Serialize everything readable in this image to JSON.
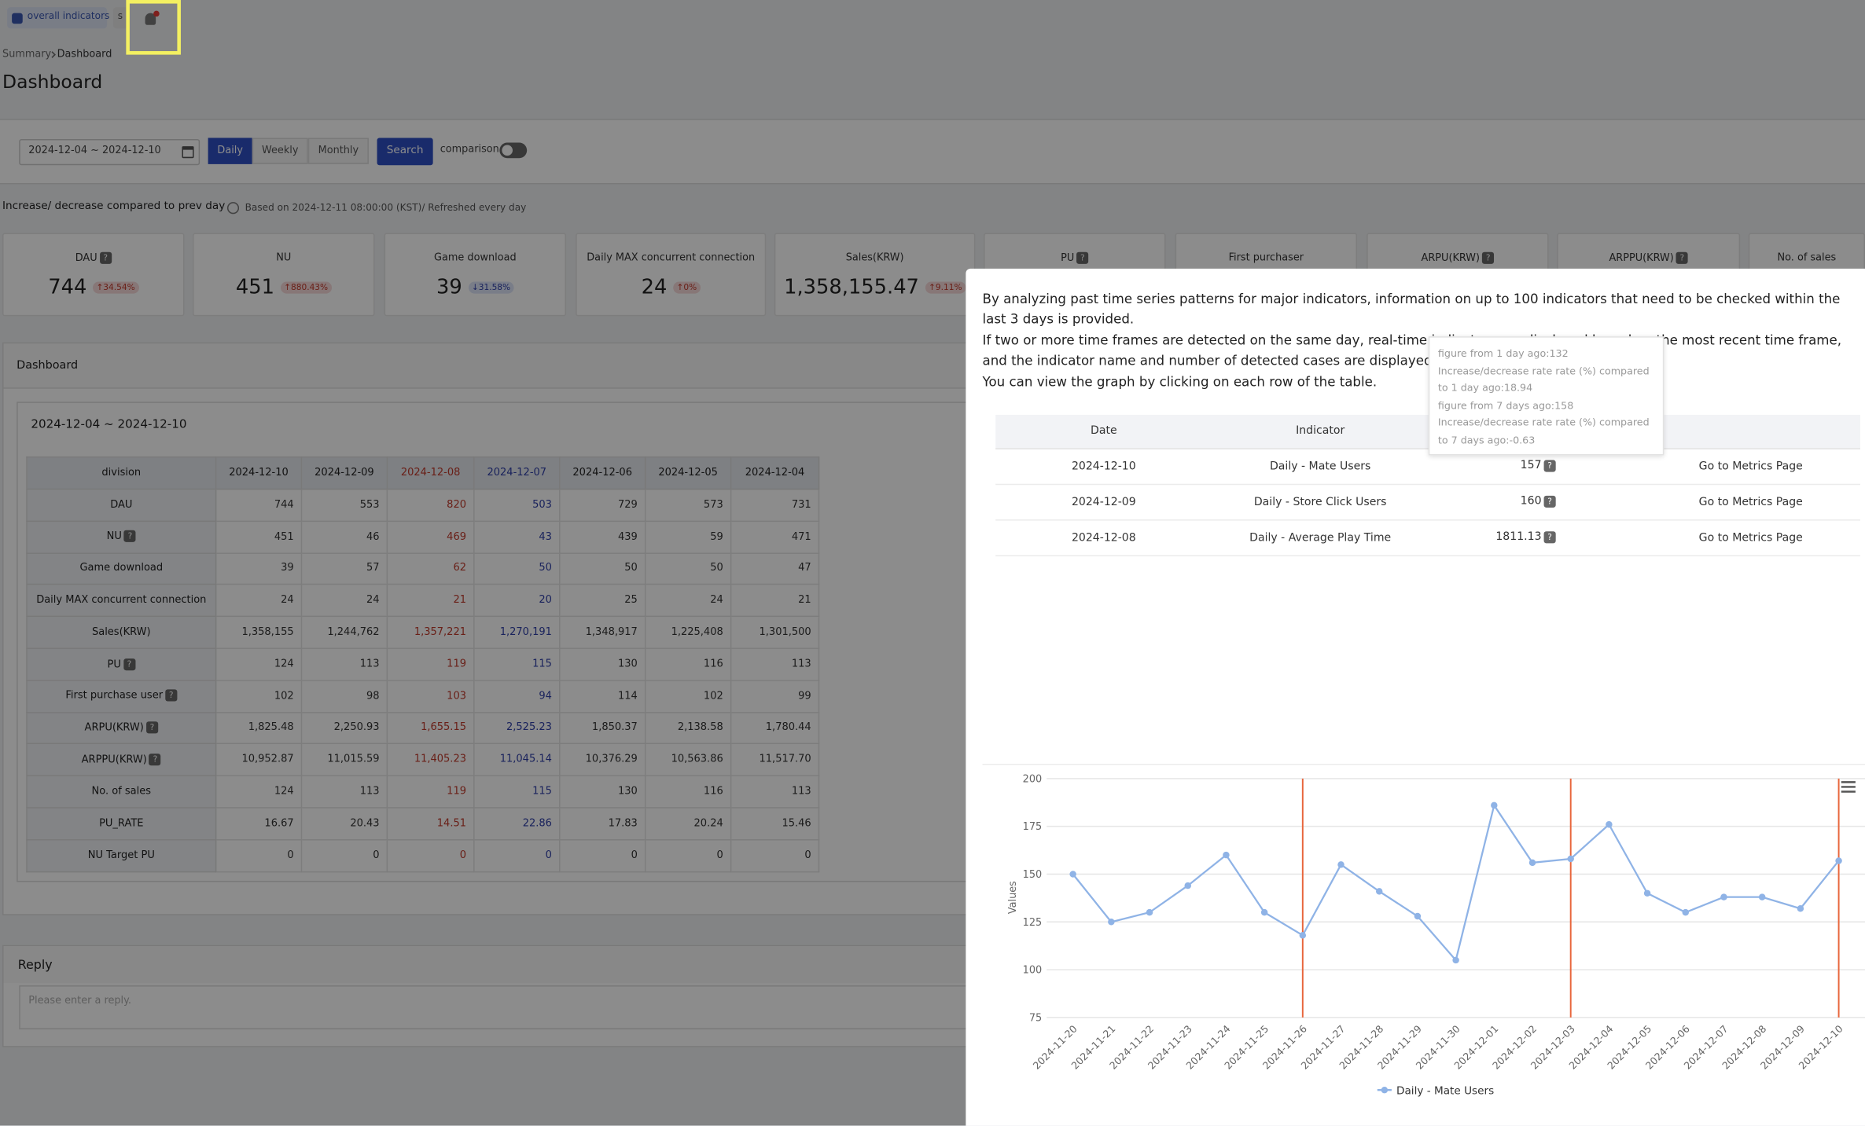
{
  "tabs": [
    "overall indicators",
    "s"
  ],
  "breadcrumb": [
    "Summary",
    "Dashboard"
  ],
  "title": "Dashboard",
  "filter": {
    "date_range": "2024-12-04 ~ 2024-12-10",
    "periods": [
      "Daily",
      "Weekly",
      "Monthly"
    ],
    "active_period": 0,
    "search": "Search",
    "comparison": "comparison"
  },
  "info": {
    "label": "Increase/ decrease compared to prev day",
    "note": "Based on 2024-12-11 08:00:00 (KST)/ Refreshed every day"
  },
  "help_icon": "?",
  "kpis": [
    {
      "label": "DAU",
      "help": true,
      "value": "744",
      "change": "↑34.54%",
      "trend": "up"
    },
    {
      "label": "NU",
      "help": false,
      "value": "451",
      "change": "↑880.43%",
      "trend": "up"
    },
    {
      "label": "Game download",
      "help": false,
      "value": "39",
      "change": "↓31.58%",
      "trend": "down"
    },
    {
      "label": "Daily MAX concurrent connection",
      "help": false,
      "value": "24",
      "change": "↑0%",
      "trend": "up"
    },
    {
      "label": "Sales(KRW)",
      "help": false,
      "value": "1,358,155.47",
      "change": "↑9.11%",
      "trend": "up"
    },
    {
      "label": "PU",
      "help": true
    },
    {
      "label": "First purchaser",
      "help": false
    },
    {
      "label": "ARPU(KRW)",
      "help": true
    },
    {
      "label": "ARPPU(KRW)",
      "help": true
    },
    {
      "label": "No. of sales",
      "help": false
    }
  ],
  "dashboard": {
    "title": "Dashboard",
    "range": "2024-12-04 ~ 2024-12-10",
    "table": {
      "header": [
        "division",
        "2024-12-10",
        "2024-12-09",
        "2024-12-08",
        "2024-12-07",
        "2024-12-06",
        "2024-12-05",
        "2024-12-04"
      ],
      "column_colors": [
        null,
        null,
        null,
        "#c0392b",
        "#2f3fa8",
        null,
        null,
        null
      ],
      "rows": [
        {
          "label": "DAU",
          "help": false,
          "cells": [
            "744",
            "553",
            "820",
            "503",
            "729",
            "573",
            "731"
          ]
        },
        {
          "label": "NU",
          "help": true,
          "cells": [
            "451",
            "46",
            "469",
            "43",
            "439",
            "59",
            "471"
          ]
        },
        {
          "label": "Game download",
          "help": false,
          "cells": [
            "39",
            "57",
            "62",
            "50",
            "50",
            "50",
            "47"
          ]
        },
        {
          "label": "Daily MAX concurrent connection",
          "help": false,
          "cells": [
            "24",
            "24",
            "21",
            "20",
            "25",
            "24",
            "21"
          ]
        },
        {
          "label": "Sales(KRW)",
          "help": false,
          "cells": [
            "1,358,155",
            "1,244,762",
            "1,357,221",
            "1,270,191",
            "1,348,917",
            "1,225,408",
            "1,301,500"
          ]
        },
        {
          "label": "PU",
          "help": true,
          "cells": [
            "124",
            "113",
            "119",
            "115",
            "130",
            "116",
            "113"
          ]
        },
        {
          "label": "First purchase user",
          "help": true,
          "cells": [
            "102",
            "98",
            "103",
            "94",
            "114",
            "102",
            "99"
          ]
        },
        {
          "label": "ARPU(KRW)",
          "help": true,
          "cells": [
            "1,825.48",
            "2,250.93",
            "1,655.15",
            "2,525.23",
            "1,850.37",
            "2,138.58",
            "1,780.44"
          ]
        },
        {
          "label": "ARPPU(KRW)",
          "help": true,
          "cells": [
            "10,952.87",
            "11,015.59",
            "11,405.23",
            "11,045.14",
            "10,376.29",
            "10,563.86",
            "11,517.70"
          ]
        },
        {
          "label": "No. of sales",
          "help": false,
          "cells": [
            "124",
            "113",
            "119",
            "115",
            "130",
            "116",
            "113"
          ]
        },
        {
          "label": "PU_RATE",
          "help": false,
          "cells": [
            "16.67",
            "20.43",
            "14.51",
            "22.86",
            "17.83",
            "20.24",
            "15.46"
          ]
        },
        {
          "label": "NU Target PU",
          "help": false,
          "cells": [
            "0",
            "0",
            "0",
            "0",
            "0",
            "0",
            "0"
          ]
        }
      ]
    }
  },
  "reply": {
    "title": "Reply",
    "placeholder": "Please enter a reply."
  },
  "modal": {
    "paragraphs": [
      "By analyzing past time series patterns for major indicators, information on up to 100 indicators that need to be checked within the last 3 days is provided.",
      "If two or more time frames are detected on the same day, real-time indicators are displayed based on the most recent time frame, and the indicator name and number of detected cases are displayed together.",
      "You can view the graph by clicking on each row of the table."
    ],
    "tooltip": [
      "figure from 1 day ago:132",
      "Increase/decrease rate rate (%) compared to 1 day ago:18.94",
      "figure from 7 days ago:158",
      "Increase/decrease rate rate (%) compared to 7 days ago:-0.63"
    ],
    "table": {
      "header": [
        "Date",
        "Indicator"
      ],
      "rows": [
        {
          "date": "2024-12-10",
          "indicator": "Daily - Mate Users",
          "value": "157",
          "link": "Go to Metrics Page"
        },
        {
          "date": "2024-12-09",
          "indicator": "Daily - Store Click Users",
          "value": "160",
          "link": "Go to Metrics Page"
        },
        {
          "date": "2024-12-08",
          "indicator": "Daily - Average Play Time",
          "value": "1811.13",
          "link": "Go to Metrics Page"
        }
      ]
    }
  },
  "chart_data": {
    "type": "line",
    "y_label": "Values",
    "categories": [
      "2024-11-20",
      "2024-11-21",
      "2024-11-22",
      "2024-11-23",
      "2024-11-24",
      "2024-11-25",
      "2024-11-26",
      "2024-11-27",
      "2024-11-28",
      "2024-11-29",
      "2024-11-30",
      "2024-12-01",
      "2024-12-02",
      "2024-12-03",
      "2024-12-04",
      "2024-12-05",
      "2024-12-06",
      "2024-12-07",
      "2024-12-08",
      "2024-12-09",
      "2024-12-10"
    ],
    "series": [
      {
        "name": "Daily - Mate Users",
        "color": "#8fb3e6",
        "values": [
          150,
          125,
          130,
          144,
          160,
          130,
          118,
          155,
          141,
          128,
          105,
          186,
          156,
          158,
          176,
          140,
          130,
          138,
          138,
          132,
          157
        ]
      }
    ],
    "markers_x": [
      "2024-11-26",
      "2024-12-03",
      "2024-12-10"
    ],
    "marker_color": "#e8663c",
    "ylim": [
      75,
      200
    ],
    "yticks": [
      75,
      100,
      125,
      150,
      175,
      200
    ],
    "grid": true,
    "legend": "bottom"
  }
}
